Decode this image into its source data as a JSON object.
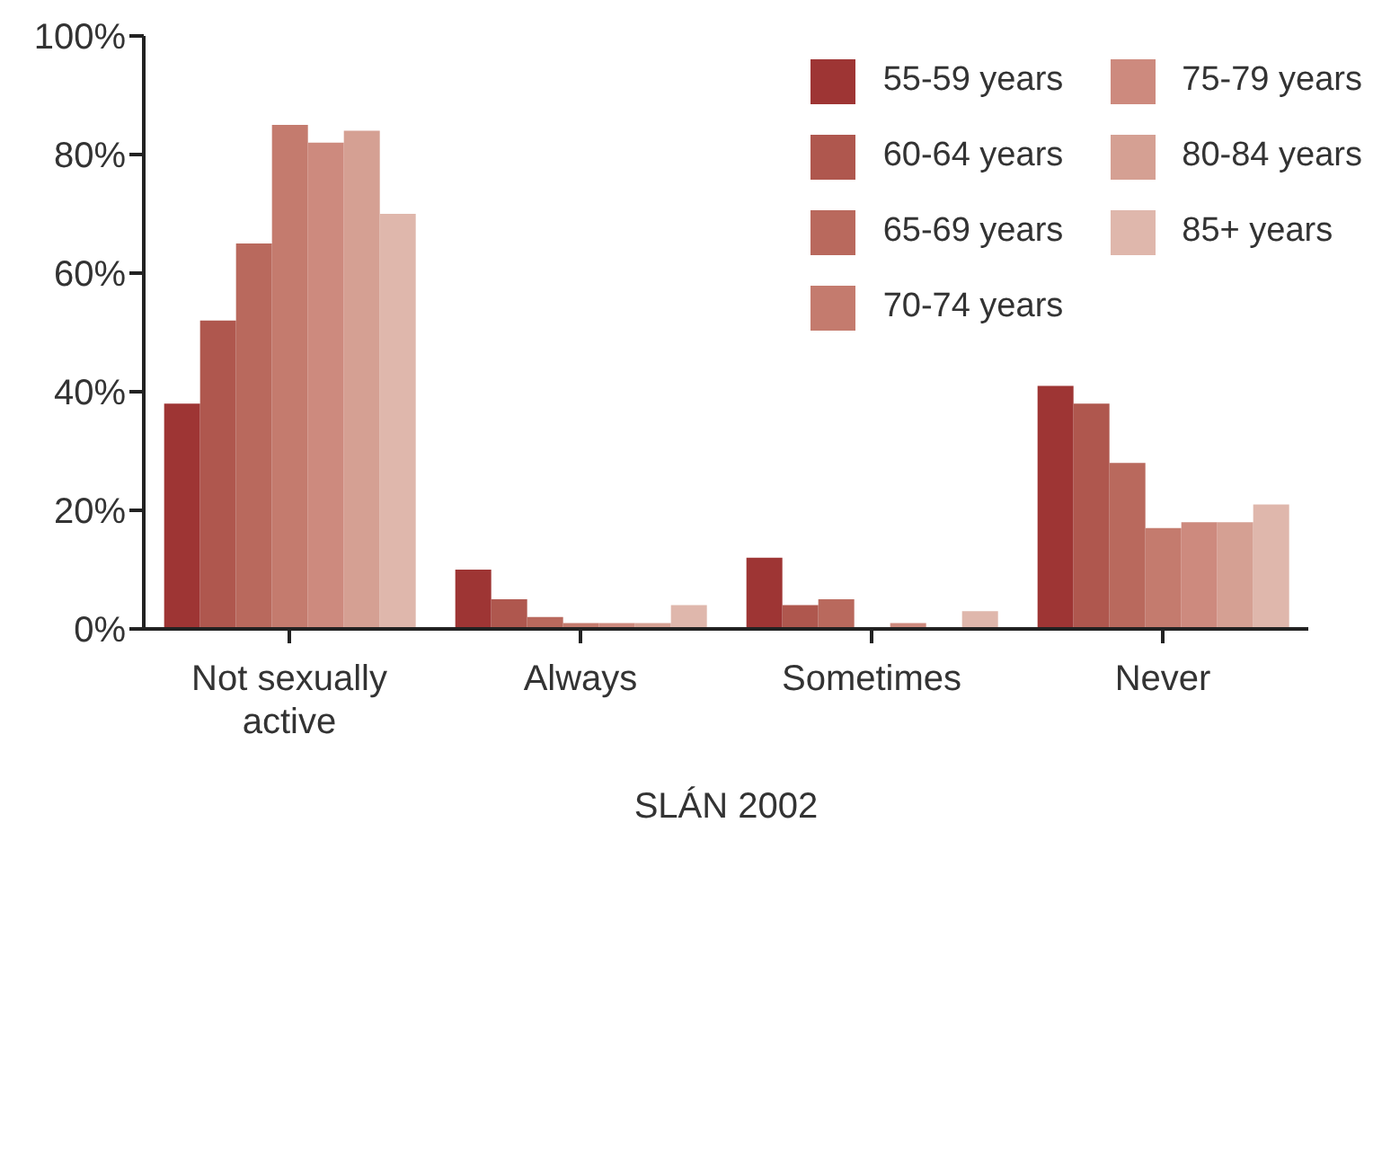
{
  "chart_data": {
    "type": "bar",
    "xlabel": "SLÁN 2002",
    "categories": [
      "Not sexually active",
      "Always",
      "Sometimes",
      "Never"
    ],
    "series": [
      {
        "name": "55-59 years",
        "color": "#9e3534",
        "values": [
          38,
          10,
          12,
          41
        ]
      },
      {
        "name": "60-64 years",
        "color": "#af574e",
        "values": [
          52,
          5,
          4,
          38
        ]
      },
      {
        "name": "65-69 years",
        "color": "#b9695d",
        "values": [
          65,
          2,
          5,
          28
        ]
      },
      {
        "name": "70-74 years",
        "color": "#c47b6e",
        "values": [
          85,
          1,
          0,
          17
        ]
      },
      {
        "name": "75-79 years",
        "color": "#cd8a7e",
        "values": [
          82,
          1,
          1,
          18
        ]
      },
      {
        "name": "80-84 years",
        "color": "#d5a093",
        "values": [
          84,
          1,
          0,
          18
        ]
      },
      {
        "name": "85+ years",
        "color": "#dfb7ac",
        "values": [
          70,
          4,
          3,
          21
        ]
      }
    ],
    "ylim": [
      0,
      100
    ],
    "yticks": [
      {
        "value": 0,
        "label": "0%"
      },
      {
        "value": 20,
        "label": "20%"
      },
      {
        "value": 40,
        "label": "40%"
      },
      {
        "value": 60,
        "label": "60%"
      },
      {
        "value": 80,
        "label": "80%"
      },
      {
        "value": 100,
        "label": "100%"
      }
    ],
    "grid": false,
    "legend": "top right"
  }
}
